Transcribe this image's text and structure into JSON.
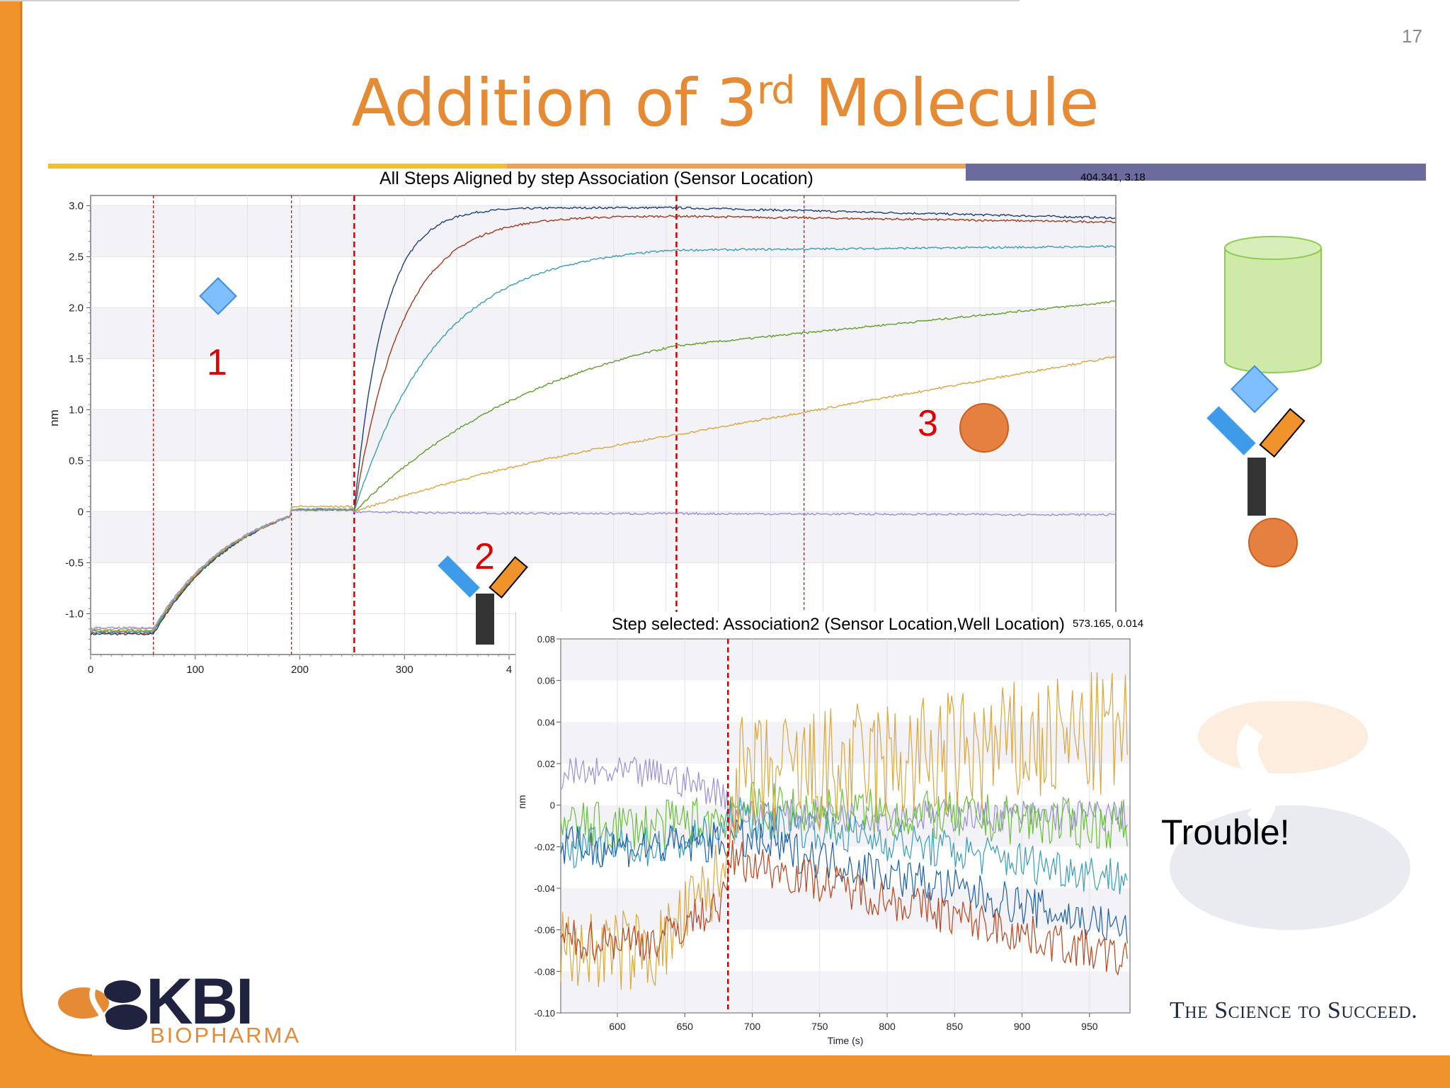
{
  "slide": {
    "number": "17",
    "title_main": "Addition of 3",
    "title_sup": "rd",
    "title_end": " Molecule",
    "trouble": "Trouble!",
    "tagline": "The Science to Succeed.",
    "logo_main": "KBI",
    "logo_sub": "BIOPHARMA",
    "annotations": [
      "1",
      "2",
      "3"
    ]
  },
  "colors": {
    "orange": "#e58a35",
    "accent_bar_yellow": "#f2c21b",
    "accent_bar_orange": "#f0a050",
    "accent_bar_purple": "#6b6b9e",
    "marker_red": "#d00000",
    "diamond_blue": "#7fbfff",
    "cylinder_green": "#cfe9a8"
  },
  "chart_data": [
    {
      "type": "line",
      "title": "All Steps Aligned by step Association (Sensor Location)",
      "readout": "404.341, 3.18",
      "xlabel": "",
      "ylabel": "nm",
      "xlim": [
        0,
        980
      ],
      "ylim": [
        -1.4,
        3.1
      ],
      "x_ticks": [
        "0",
        "100",
        "200",
        "300",
        "4"
      ],
      "y_ticks": [
        "3.0",
        "2.5",
        "2.0",
        "1.5",
        "1.0",
        "0.5",
        "0",
        "-0.5",
        "-1.0"
      ],
      "step_boundaries": [
        60,
        192,
        252,
        560,
        682
      ],
      "grid": true,
      "series": [
        {
          "color": "#1f3f7a",
          "plateau": 2.98,
          "final": 2.88,
          "tau": 28
        },
        {
          "color": "#a0391e",
          "plateau": 2.9,
          "final": 2.84,
          "tau": 45
        },
        {
          "color": "#3a9db8",
          "plateau": 2.62,
          "final": 2.6,
          "tau": 80
        },
        {
          "color": "#5f9e2a",
          "plateau": 2.07,
          "final": 2.06,
          "tau": 200
        },
        {
          "color": "#d9a640",
          "plateau": 1.45,
          "final": 1.52,
          "tau": 420
        },
        {
          "color": "#9c8fd6",
          "plateau": -0.02,
          "final": -0.03,
          "tau": 100
        }
      ],
      "baseline_start": -1.17,
      "loading_end": -0.04
    },
    {
      "type": "line",
      "title": "Step selected: Association2 (Sensor Location,Well Location)",
      "readout": "573.165, 0.014",
      "xlabel": "Time (s)",
      "ylabel": "nm",
      "xlim": [
        558,
        980
      ],
      "ylim": [
        -0.1,
        0.08
      ],
      "x_ticks": [
        "600",
        "650",
        "700",
        "750",
        "800",
        "850",
        "900",
        "950"
      ],
      "y_ticks": [
        "0.08",
        "0.06",
        "0.04",
        "0.02",
        "0",
        "-0.02",
        "-0.04",
        "-0.06",
        "-0.08",
        "-0.10"
      ],
      "step_boundary": 682,
      "grid": true,
      "series": [
        {
          "color": "#9c8fd6",
          "before": 0.015,
          "after": -0.005,
          "end": -0.005,
          "noise": 0.008
        },
        {
          "color": "#6abf3a",
          "before": -0.01,
          "after": 0.0,
          "end": -0.01,
          "noise": 0.012
        },
        {
          "color": "#3a9db8",
          "before": -0.02,
          "after": -0.005,
          "end": -0.035,
          "noise": 0.01
        },
        {
          "color": "#1f5fa8",
          "before": -0.02,
          "after": -0.015,
          "end": -0.06,
          "noise": 0.01
        },
        {
          "color": "#d9a640",
          "before": -0.07,
          "after": 0.01,
          "end": 0.035,
          "noise": 0.02
        },
        {
          "color": "#b8461e",
          "before": -0.065,
          "after": -0.025,
          "end": -0.075,
          "noise": 0.01
        }
      ]
    }
  ]
}
